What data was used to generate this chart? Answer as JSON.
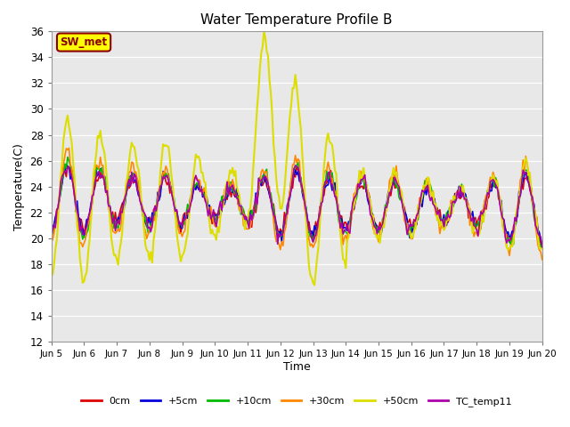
{
  "title": "Water Temperature Profile B",
  "xlabel": "Time",
  "ylabel": "Temperature(C)",
  "ylim": [
    12,
    36
  ],
  "xlim": [
    0,
    15
  ],
  "plot_bg": "#e8e8e8",
  "annotation_text": "SW_met",
  "annotation_color": "#8b0000",
  "annotation_bg": "#ffff00",
  "annotation_border": "#8b0000",
  "xtick_labels": [
    "Jun 5",
    "Jun 6",
    "Jun 7",
    "Jun 8",
    "Jun 9",
    "Jun 10",
    "Jun 11",
    "Jun 12",
    "Jun 13",
    "Jun 14",
    "Jun 15",
    "Jun 16",
    "Jun 17",
    "Jun 18",
    "Jun 19",
    "Jun 20"
  ],
  "series_colors": [
    "#dd0000",
    "#0000dd",
    "#00bb00",
    "#ff8800",
    "#dddd00",
    "#aa00aa"
  ],
  "series_names": [
    "0cm",
    "+5cm",
    "+10cm",
    "+30cm",
    "+50cm",
    "TC_temp11"
  ],
  "linewidths": [
    1.2,
    1.2,
    1.2,
    1.2,
    1.5,
    1.2
  ]
}
